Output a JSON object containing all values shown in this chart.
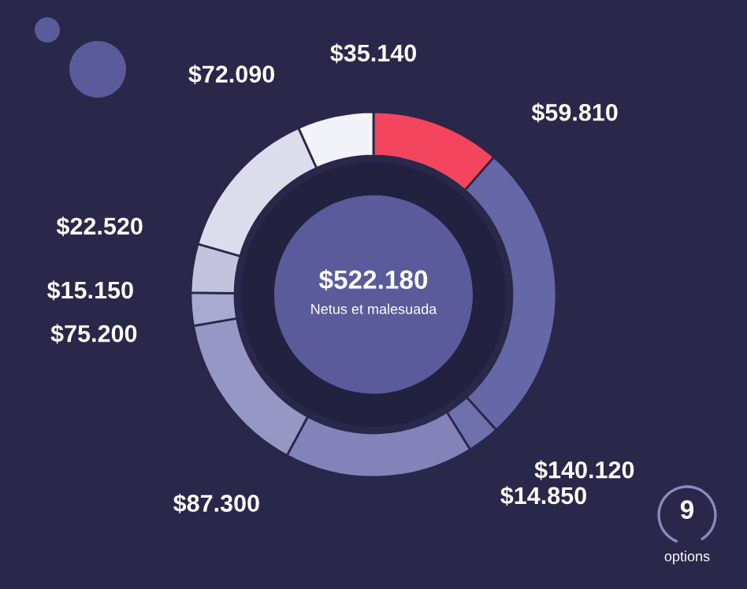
{
  "chart_data": {
    "type": "donut",
    "categories": [
      null,
      null,
      null,
      null,
      null,
      null,
      null,
      null,
      null
    ],
    "values": [
      59810,
      140120,
      14850,
      87300,
      75200,
      15150,
      22520,
      72090,
      35140
    ],
    "value_labels": [
      "$59.810",
      "$140.120",
      "$14.850",
      "$87.300",
      "$75.200",
      "$15.150",
      "$22.520",
      "$72.090",
      "$35.140"
    ],
    "colors": [
      "#f4455e",
      "#6667a6",
      "#7070ad",
      "#8383ba",
      "#9797c6",
      "#a9a9d1",
      "#c3c3df",
      "#dcdced",
      "#f2f2f9"
    ],
    "annotations": [
      "$522.180",
      "Netus et malesuada",
      "9",
      "options"
    ]
  }
}
